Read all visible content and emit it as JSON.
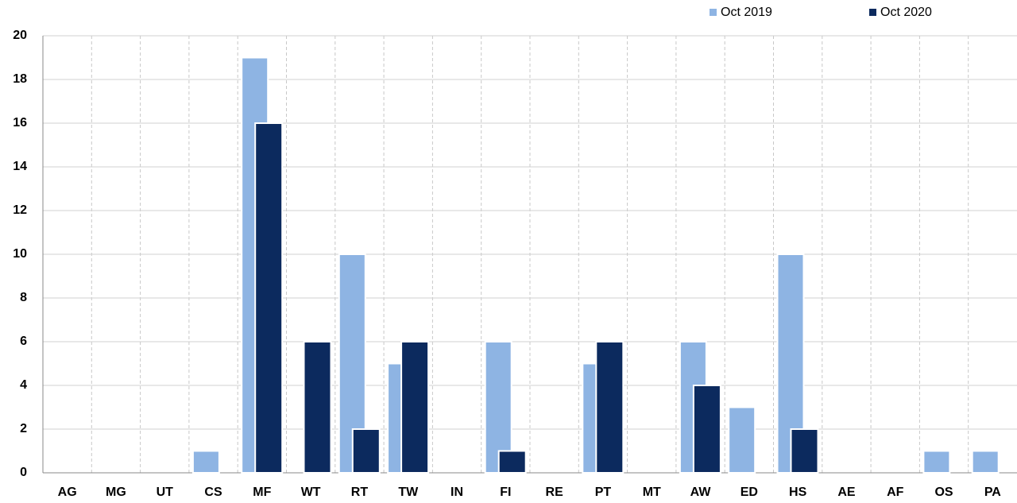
{
  "chart_data": {
    "type": "bar",
    "categories": [
      "AG",
      "MG",
      "UT",
      "CS",
      "MF",
      "WT",
      "RT",
      "TW",
      "IN",
      "FI",
      "RE",
      "PT",
      "MT",
      "AW",
      "ED",
      "HS",
      "AE",
      "AF",
      "OS",
      "PA"
    ],
    "series": [
      {
        "name": "Oct 2019",
        "color": "#8eb4e3",
        "values": [
          0,
          0,
          0,
          1,
          19,
          0,
          10,
          5,
          0,
          6,
          0,
          5,
          0,
          6,
          3,
          10,
          0,
          0,
          1,
          1
        ]
      },
      {
        "name": "Oct 2020",
        "color": "#0c2a5e",
        "values": [
          0,
          0,
          0,
          0,
          16,
          6,
          2,
          6,
          0,
          1,
          0,
          6,
          0,
          4,
          0,
          2,
          0,
          0,
          0,
          0
        ]
      }
    ],
    "ylim": [
      0,
      20
    ],
    "yticks": [
      0,
      2,
      4,
      6,
      8,
      10,
      12,
      14,
      16,
      18,
      20
    ],
    "grid": true,
    "legend": "top-right"
  }
}
